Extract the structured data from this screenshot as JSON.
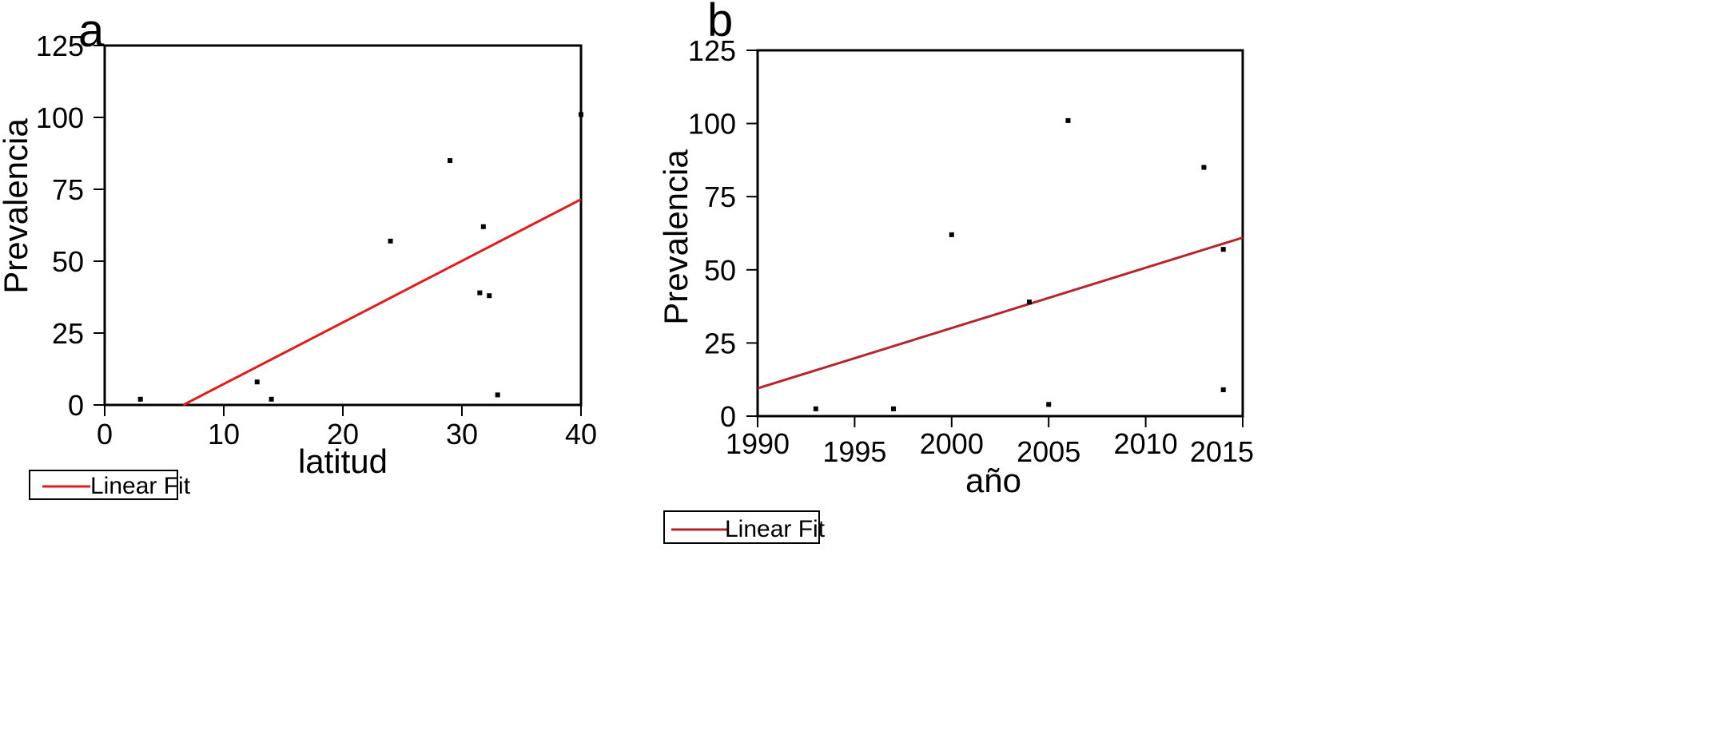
{
  "chart_data": [
    {
      "type": "scatter",
      "panel_label": "a",
      "xlabel": "latitud",
      "ylabel": "Prevalencia",
      "xlim": [
        0,
        40
      ],
      "ylim": [
        0,
        125
      ],
      "xticks": [
        "0",
        "10",
        "20",
        "30",
        "40"
      ],
      "yticks": [
        "0",
        "25",
        "50",
        "75",
        "100",
        "125"
      ],
      "points": [
        {
          "x": 3,
          "y": 2
        },
        {
          "x": 12.8,
          "y": 8
        },
        {
          "x": 14,
          "y": 2
        },
        {
          "x": 24,
          "y": 57
        },
        {
          "x": 29,
          "y": 85
        },
        {
          "x": 31.5,
          "y": 39
        },
        {
          "x": 31.8,
          "y": 62
        },
        {
          "x": 32.3,
          "y": 38
        },
        {
          "x": 33,
          "y": 3.5
        },
        {
          "x": 40,
          "y": 101
        }
      ],
      "fit_line": {
        "x": [
          6.6,
          40
        ],
        "y": [
          0,
          71.5
        ]
      },
      "line_color": "#e01b1b",
      "legend": {
        "label": "Linear Fit",
        "placement": "bottom-left"
      }
    },
    {
      "type": "scatter",
      "panel_label": "b",
      "xlabel": "año",
      "ylabel": "Prevalencia",
      "xlim": [
        1990,
        2015
      ],
      "ylim": [
        0,
        125
      ],
      "xticks": [
        "1990",
        "1995",
        "2000",
        "2005",
        "2010",
        "2015"
      ],
      "yticks": [
        "0",
        "25",
        "50",
        "75",
        "100",
        "125"
      ],
      "points": [
        {
          "x": 1993,
          "y": 2.5
        },
        {
          "x": 1997,
          "y": 2.5
        },
        {
          "x": 2000,
          "y": 62
        },
        {
          "x": 2004,
          "y": 39
        },
        {
          "x": 2005,
          "y": 4
        },
        {
          "x": 2006,
          "y": 101
        },
        {
          "x": 2013,
          "y": 85
        },
        {
          "x": 2014,
          "y": 57
        },
        {
          "x": 2014,
          "y": 9
        }
      ],
      "fit_line": {
        "x": [
          1990,
          2015
        ],
        "y": [
          9.5,
          61
        ]
      },
      "line_color": "#b5252b",
      "legend": {
        "label": "Linear Fit",
        "placement": "bottom-left"
      }
    }
  ]
}
